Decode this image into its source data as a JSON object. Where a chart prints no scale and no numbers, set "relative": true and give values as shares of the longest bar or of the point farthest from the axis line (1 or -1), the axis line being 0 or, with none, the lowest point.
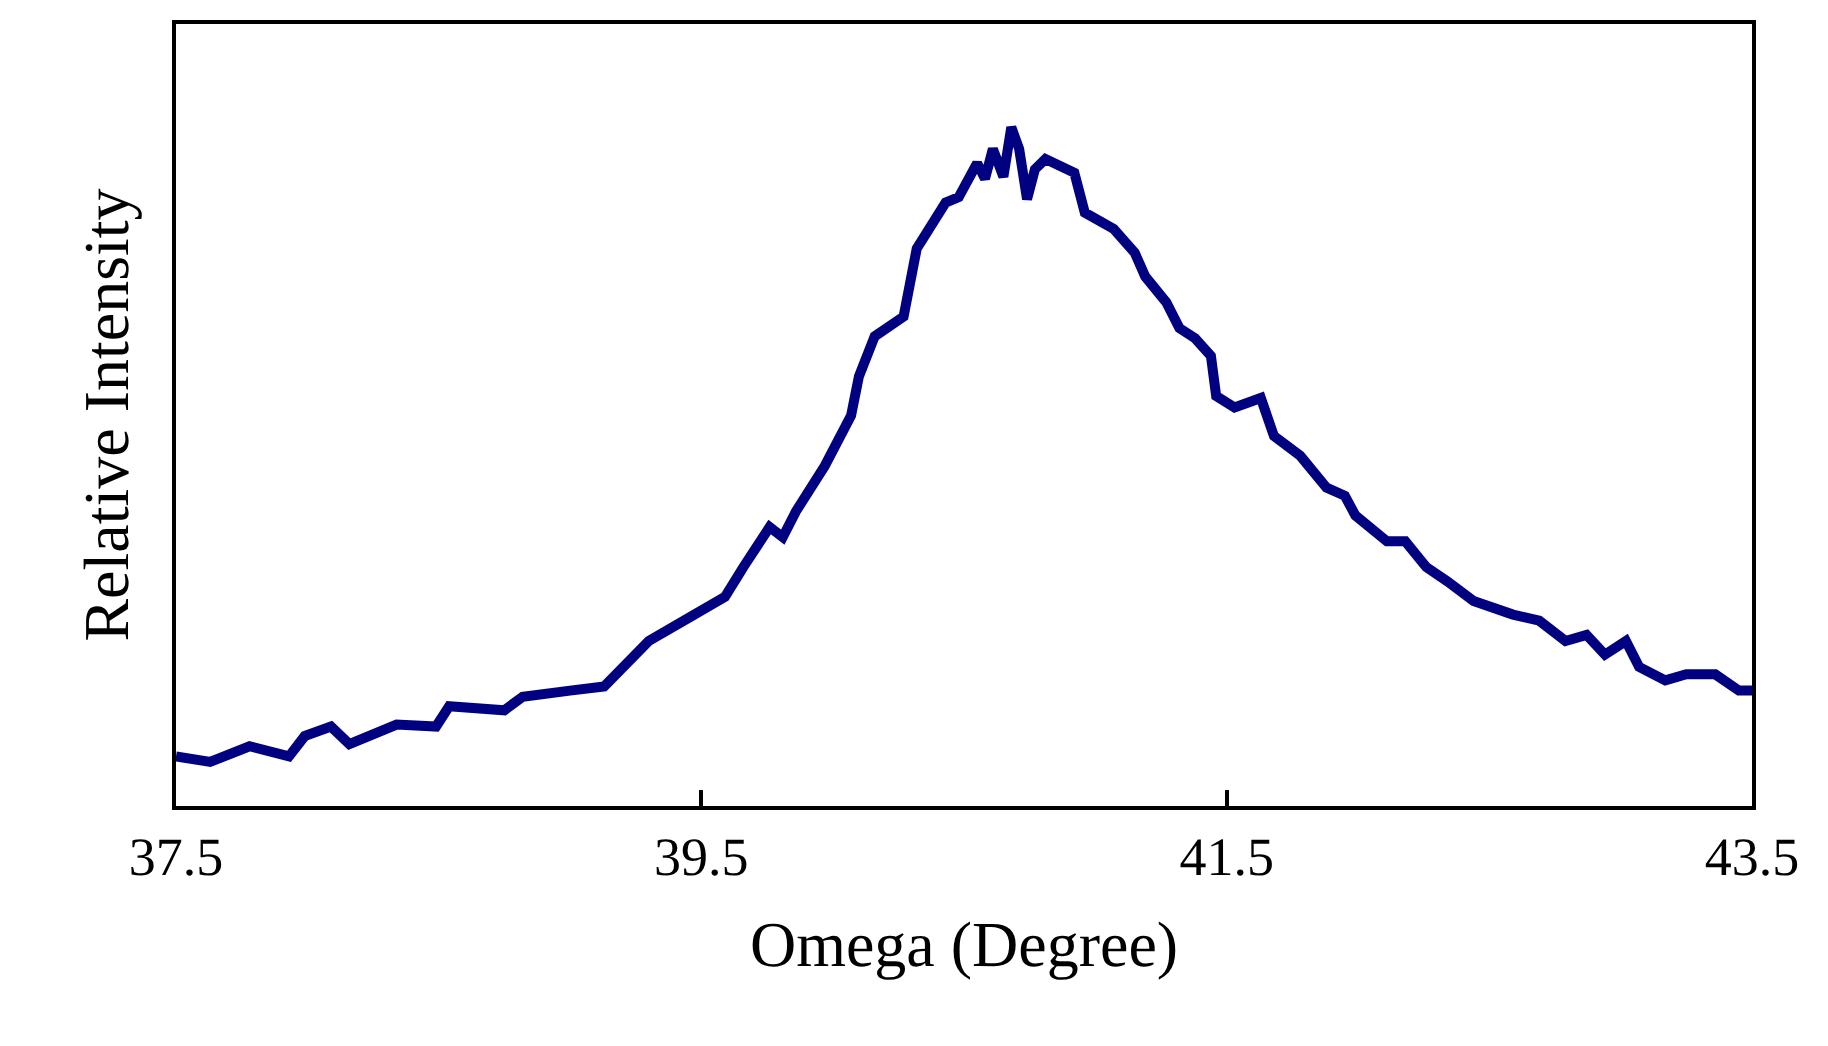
{
  "chart_data": {
    "type": "line",
    "xlabel": "Omega (Degree)",
    "ylabel": "Relative Intensity",
    "relative": true,
    "xlim": [
      37.5,
      43.5
    ],
    "xticks": [
      37.5,
      39.5,
      41.5,
      43.5
    ],
    "marker": "none",
    "line_style": "solid",
    "series": [
      {
        "color": "#000080",
        "x": [
          37.5,
          37.63,
          37.78,
          37.93,
          37.99,
          38.09,
          38.16,
          38.34,
          38.49,
          38.54,
          38.75,
          38.82,
          39.0,
          39.13,
          39.3,
          39.46,
          39.59,
          39.66,
          39.76,
          39.81,
          39.86,
          39.97,
          40.07,
          40.1,
          40.16,
          40.27,
          40.32,
          40.43,
          40.48,
          40.55,
          40.58,
          40.61,
          40.65,
          40.68,
          40.71,
          40.74,
          40.77,
          40.81,
          40.92,
          40.96,
          41.07,
          41.15,
          41.19,
          41.27,
          41.32,
          41.38,
          41.44,
          41.46,
          41.53,
          41.63,
          41.68,
          41.78,
          41.88,
          41.95,
          41.99,
          42.11,
          42.18,
          42.26,
          42.34,
          42.44,
          42.59,
          42.69,
          42.79,
          42.87,
          42.94,
          43.02,
          43.07,
          43.17,
          43.25,
          43.36,
          43.45,
          43.5
        ],
        "values": [
          0.073,
          0.065,
          0.088,
          0.073,
          0.103,
          0.117,
          0.091,
          0.12,
          0.117,
          0.147,
          0.141,
          0.161,
          0.17,
          0.176,
          0.243,
          0.279,
          0.308,
          0.352,
          0.411,
          0.396,
          0.434,
          0.501,
          0.575,
          0.633,
          0.692,
          0.721,
          0.821,
          0.889,
          0.897,
          0.947,
          0.924,
          0.968,
          0.927,
          1.0,
          0.968,
          0.894,
          0.938,
          0.953,
          0.933,
          0.874,
          0.85,
          0.815,
          0.78,
          0.742,
          0.704,
          0.689,
          0.663,
          0.604,
          0.587,
          0.601,
          0.545,
          0.516,
          0.469,
          0.457,
          0.428,
          0.39,
          0.39,
          0.352,
          0.331,
          0.302,
          0.282,
          0.273,
          0.243,
          0.252,
          0.223,
          0.243,
          0.205,
          0.185,
          0.194,
          0.194,
          0.17,
          0.17
        ]
      }
    ]
  }
}
